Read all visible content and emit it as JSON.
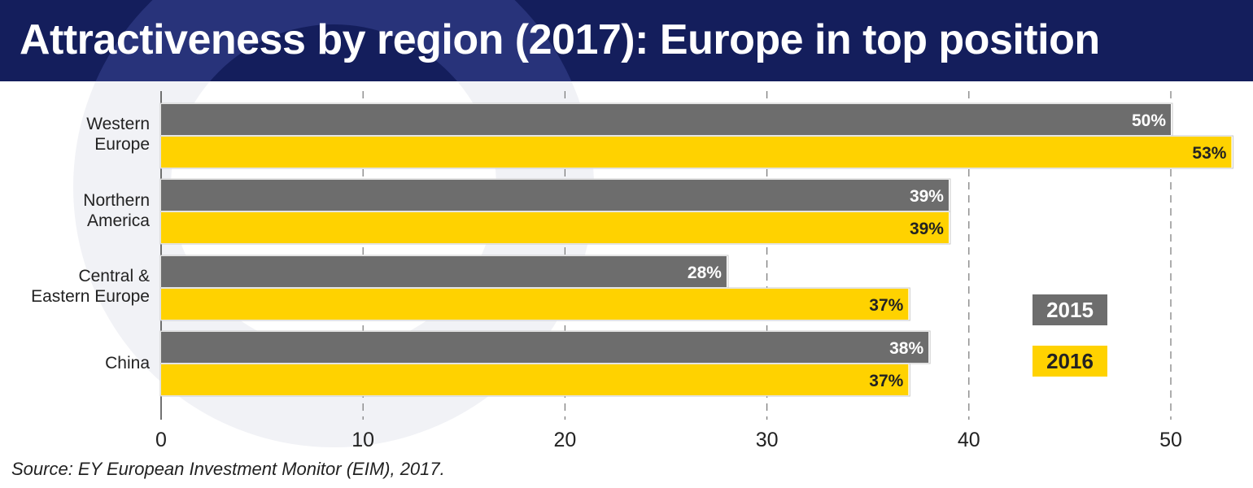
{
  "title": "Attractiveness by region (2017): Europe in top position",
  "source": "Source: EY European Investment Monitor (EIM), 2017.",
  "colors": {
    "title_bg": "#141e5c",
    "series_2015": "#6d6d6d",
    "series_2016": "#ffd200",
    "text": "#222222"
  },
  "legend": [
    {
      "label": "2015",
      "color": "#6d6d6d",
      "text_color": "#ffffff"
    },
    {
      "label": "2016",
      "color": "#ffd200",
      "text_color": "#222222"
    }
  ],
  "chart_data": {
    "type": "bar",
    "orientation": "horizontal",
    "categories": [
      "Western\nEurope",
      "Northern\nAmerica",
      "Central &\nEastern Europe",
      "China"
    ],
    "series": [
      {
        "name": "2015",
        "values": [
          50,
          39,
          28,
          38
        ],
        "labels": [
          "50%",
          "39%",
          "28%",
          "38%"
        ]
      },
      {
        "name": "2016",
        "values": [
          53,
          39,
          37,
          37
        ],
        "labels": [
          "53%",
          "39%",
          "37%",
          "37%"
        ]
      }
    ],
    "xlim": [
      0,
      54
    ],
    "xticks": [
      0,
      10,
      20,
      30,
      40,
      50
    ],
    "grid": "vertical dashed",
    "legend_position": "right"
  }
}
